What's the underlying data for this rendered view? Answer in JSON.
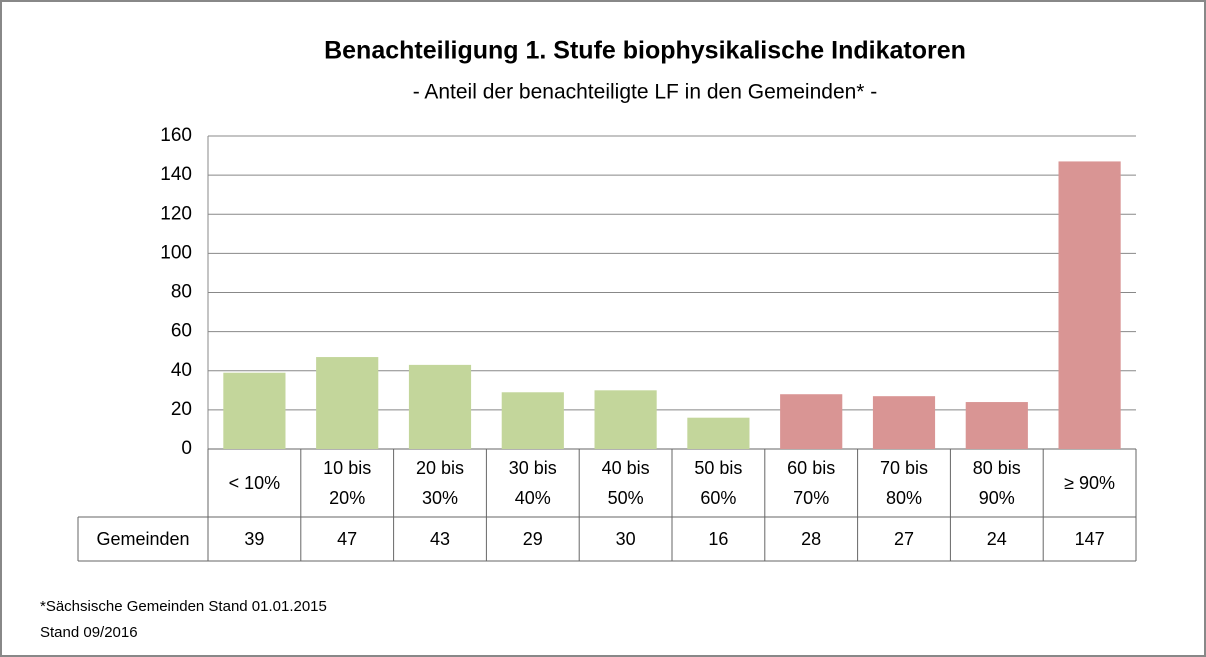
{
  "chart_data": {
    "type": "bar",
    "title": "Benachteiligung 1. Stufe biophysikalische Indikatoren",
    "subtitle": "- Anteil der benachteiligte LF in den Gemeinden* -",
    "categories": [
      "< 10%",
      "10 bis 20%",
      "20 bis 30%",
      "30 bis 40%",
      "40 bis 50%",
      "50 bis 60%",
      "60 bis 70%",
      "70 bis 80%",
      "80 bis 90%",
      "≥ 90%"
    ],
    "series": [
      {
        "name": "Gemeinden",
        "colors": [
          "#c3d69b",
          "#c3d69b",
          "#c3d69b",
          "#c3d69b",
          "#c3d69b",
          "#c3d69b",
          "#d99594",
          "#d99594",
          "#d99594",
          "#d99594"
        ],
        "values": [
          39,
          47,
          43,
          29,
          30,
          16,
          28,
          27,
          24,
          147
        ]
      }
    ],
    "ylim": [
      0,
      160
    ],
    "yticks": [
      0,
      20,
      40,
      60,
      80,
      100,
      120,
      140,
      160
    ],
    "grid": true
  },
  "footnotes": [
    "*Sächsische Gemeinden Stand 01.01.2015",
    "Stand 09/2016"
  ]
}
